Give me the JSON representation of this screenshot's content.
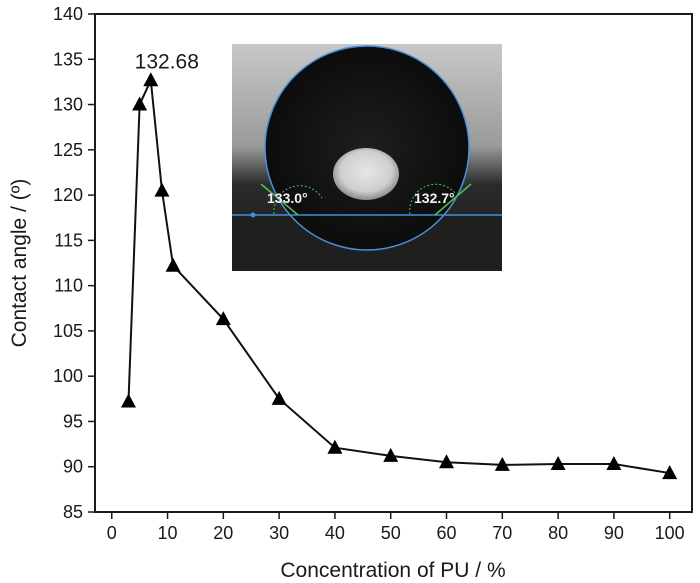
{
  "chart_data": {
    "type": "line",
    "marker": "triangle",
    "title": "",
    "xlabel": "Concentration of PU / %",
    "ylabel": "Contact angle / (º)",
    "xlim": [
      -3,
      104
    ],
    "ylim": [
      85,
      140
    ],
    "xticks": [
      0,
      10,
      20,
      30,
      40,
      50,
      60,
      70,
      80,
      90,
      100
    ],
    "yticks": [
      85,
      90,
      95,
      100,
      105,
      110,
      115,
      120,
      125,
      130,
      135,
      140
    ],
    "grid": false,
    "series": [
      {
        "x": [
          3,
          5,
          7,
          9,
          11,
          20,
          30,
          40,
          50,
          60,
          70,
          80,
          90,
          100
        ],
        "y": [
          97.2,
          130.0,
          132.68,
          120.5,
          112.2,
          106.3,
          97.5,
          92.1,
          91.2,
          90.5,
          90.2,
          90.3,
          90.3,
          89.3
        ]
      }
    ],
    "annotations": [
      {
        "text": "132.68",
        "x": 7,
        "y": 132.68
      }
    ],
    "inset": {
      "description_free": true,
      "left_angle_label": "133.0°",
      "right_angle_label": "132.7°"
    }
  }
}
